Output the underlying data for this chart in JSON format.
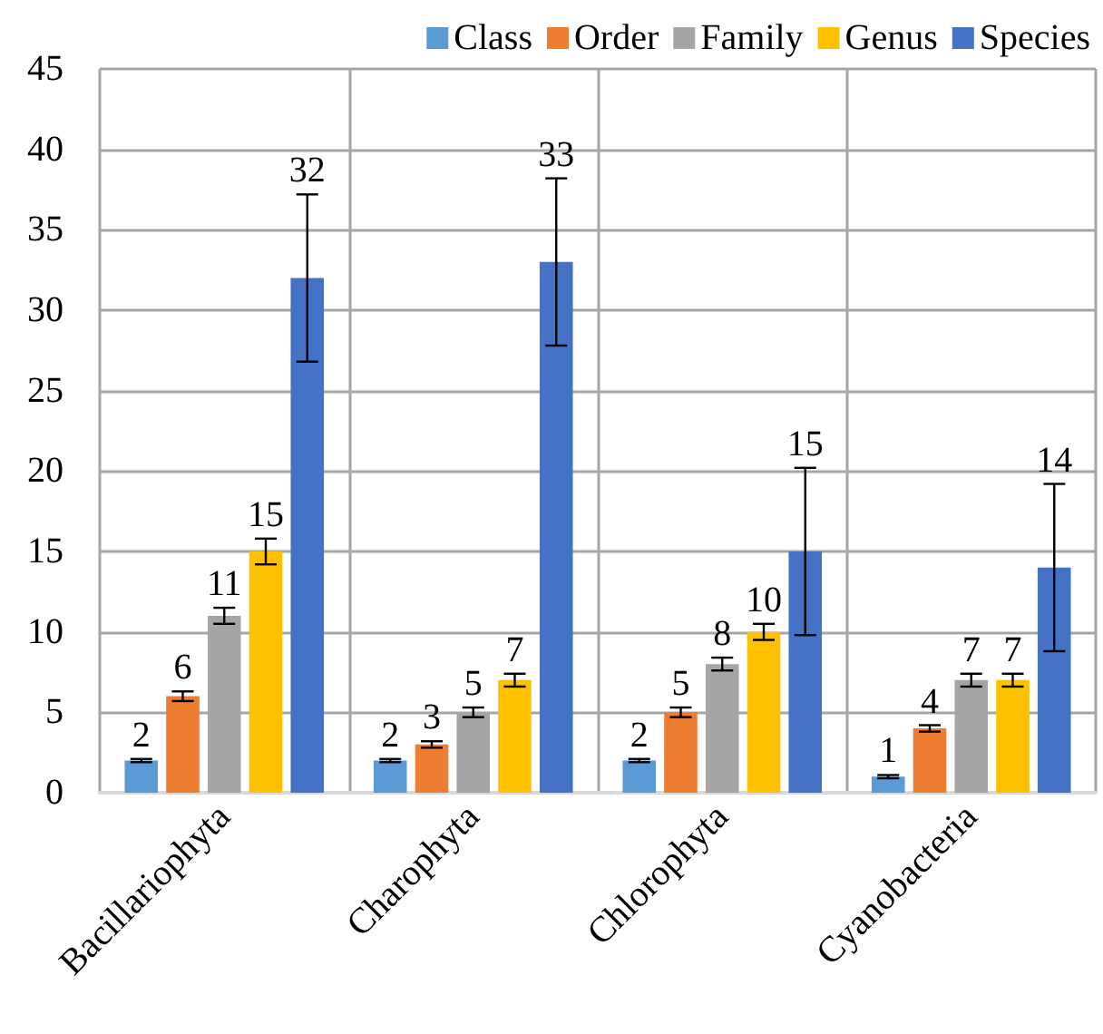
{
  "chart_data": {
    "type": "bar",
    "categories": [
      "Bacillariophyta",
      "Charophyta",
      "Chlorophyta",
      "Cyanobacteria"
    ],
    "series": [
      {
        "name": "Class",
        "color": "#5b9bd5",
        "values": [
          2,
          2,
          2,
          1
        ],
        "errors": [
          0.1,
          0.1,
          0.1,
          0.1
        ]
      },
      {
        "name": "Order",
        "color": "#ed7d31",
        "values": [
          6,
          3,
          5,
          4
        ],
        "errors": [
          0.3,
          0.2,
          0.3,
          0.2
        ]
      },
      {
        "name": "Family",
        "color": "#a5a5a5",
        "values": [
          11,
          5,
          8,
          7
        ],
        "errors": [
          0.5,
          0.3,
          0.4,
          0.4
        ]
      },
      {
        "name": "Genus",
        "color": "#ffc000",
        "values": [
          15,
          7,
          10,
          7
        ],
        "errors": [
          0.8,
          0.4,
          0.5,
          0.4
        ]
      },
      {
        "name": "Species",
        "color": "#4472c4",
        "values": [
          32,
          33,
          15,
          14
        ],
        "errors": [
          5.2,
          5.2,
          5.2,
          5.2
        ]
      }
    ],
    "ylim": [
      0,
      45
    ],
    "yticks": [
      0,
      5,
      10,
      15,
      20,
      25,
      30,
      35,
      40,
      45
    ],
    "grid": true,
    "legend": "top right",
    "data_labels": true
  }
}
